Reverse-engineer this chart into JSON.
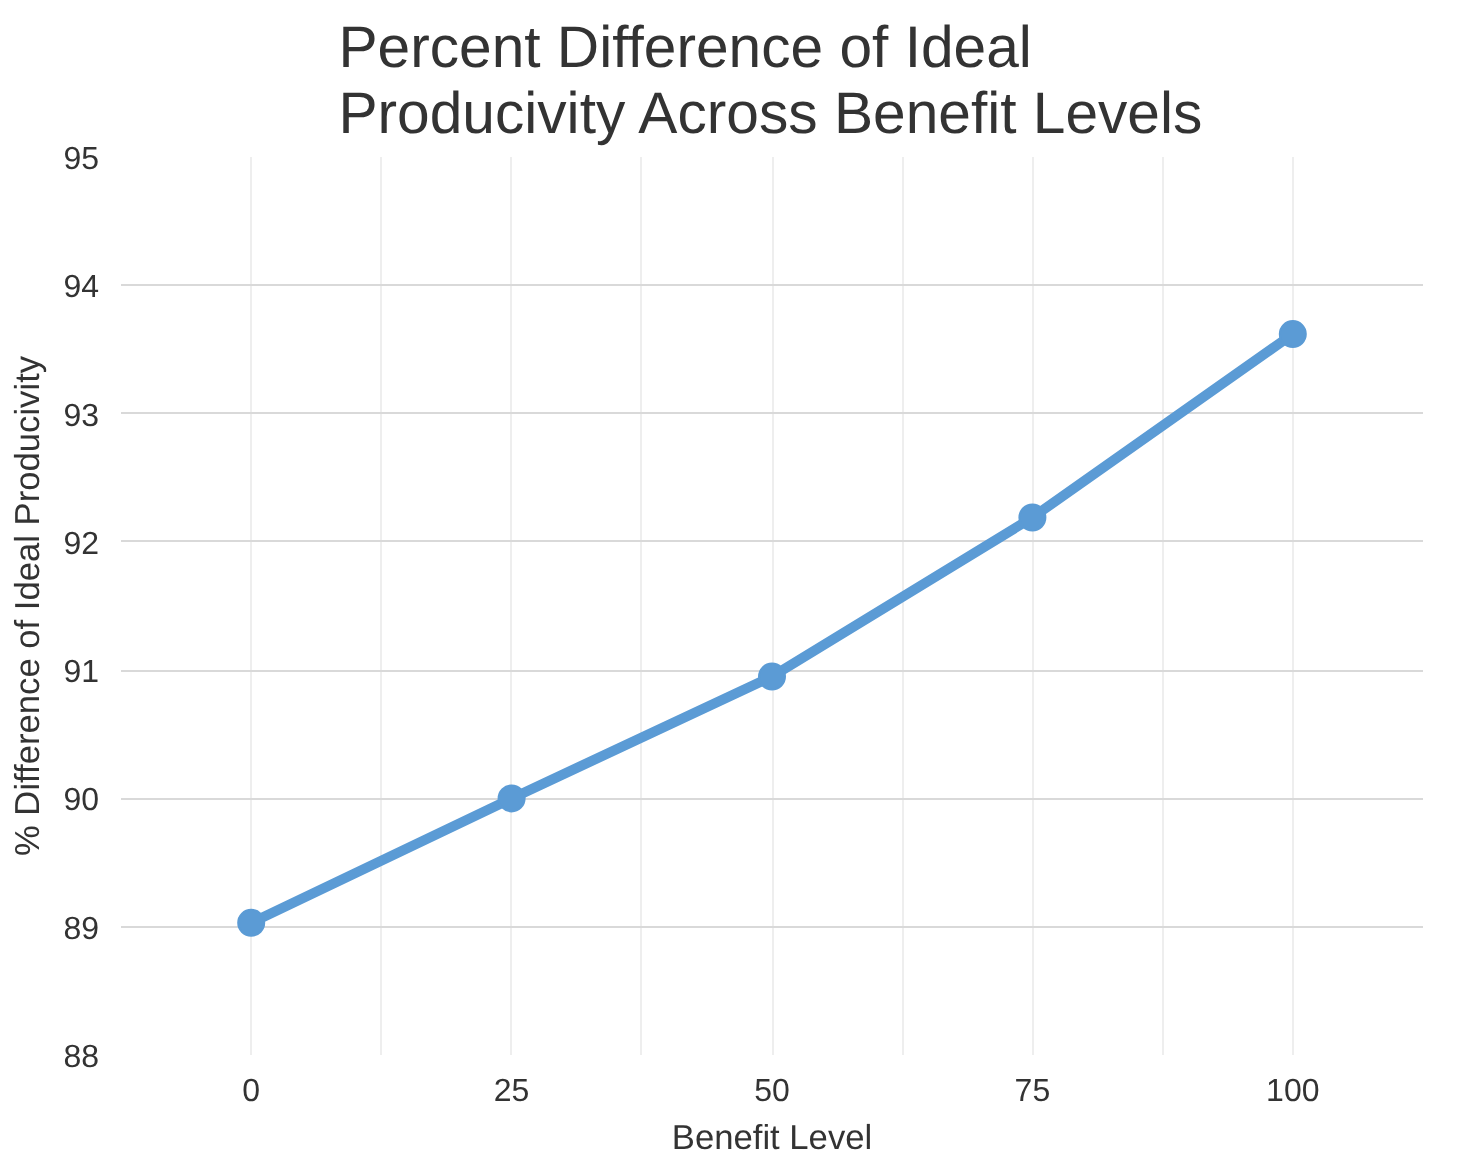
{
  "chart_data": {
    "type": "line",
    "title": "Percent Difference of Ideal\nProducivity Across Benefit Levels",
    "xlabel": "Benefit Level",
    "ylabel": "% Difference of Ideal Producivity",
    "categories": [
      "0",
      "25",
      "50",
      "75",
      "100"
    ],
    "series": [
      {
        "color": "#5b9bd5",
        "values": [
          89.03,
          90.0,
          90.95,
          92.19,
          93.62
        ]
      }
    ],
    "ylim": [
      88,
      95
    ],
    "yticks": [
      88,
      89,
      90,
      91,
      92,
      93,
      94,
      95
    ],
    "grid": true,
    "marker": "circle",
    "line_style": "solid"
  }
}
